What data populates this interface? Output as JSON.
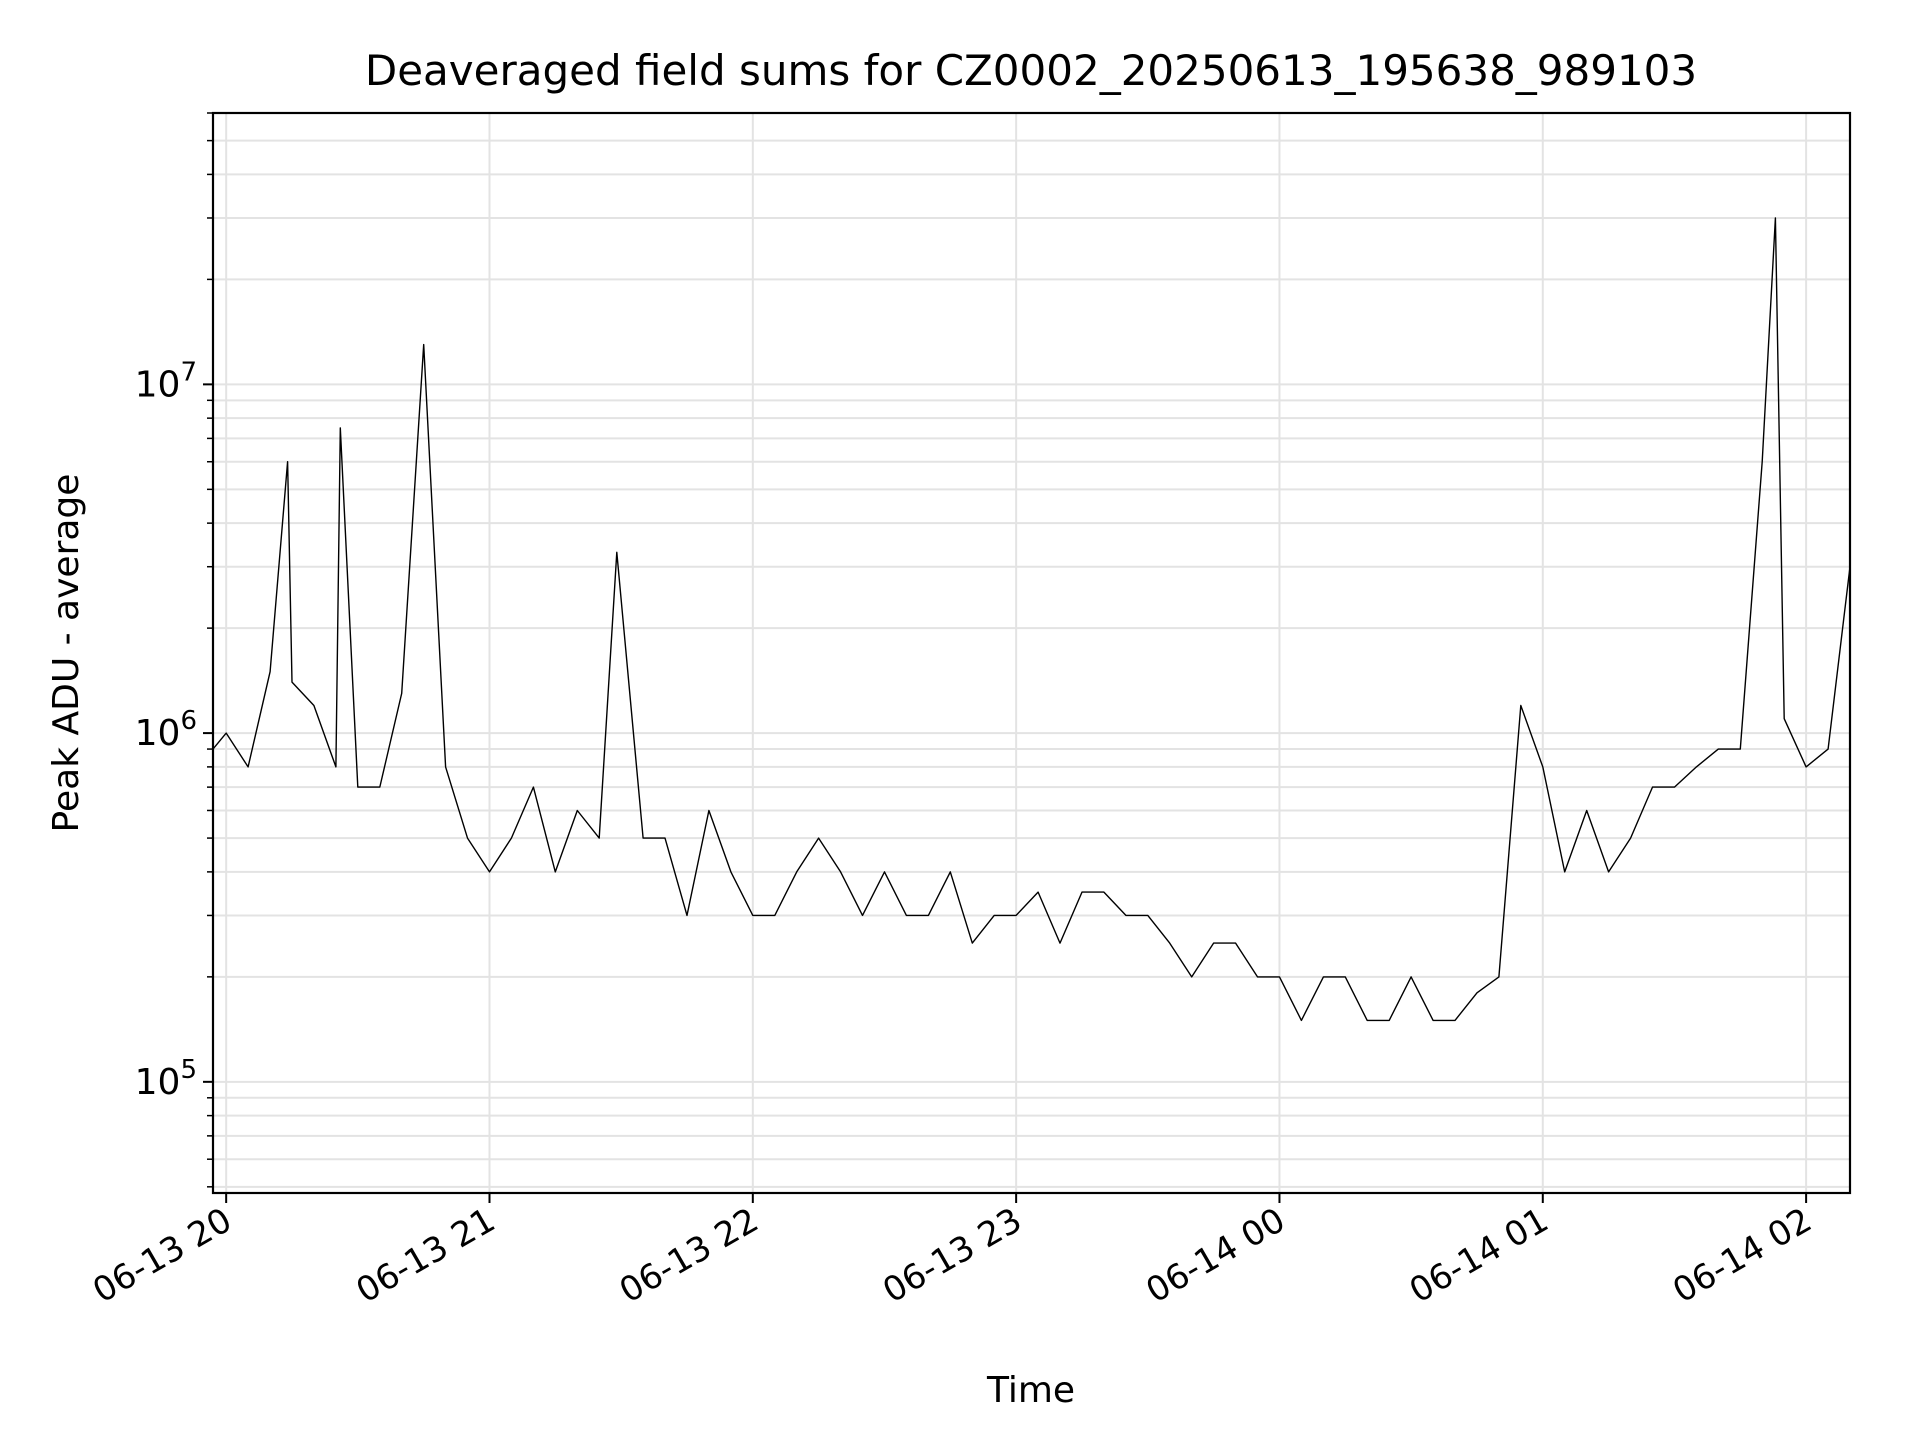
{
  "chart_data": {
    "type": "line",
    "title": "Deaveraged field sums for CZ0002_20250613_195638_989103",
    "xlabel": "Time",
    "ylabel": "Peak ADU - average",
    "yscale": "log",
    "grid": true,
    "ylim": [
      48000,
      60000000
    ],
    "xlim": [
      "2025-06-13 19:57",
      "2025-06-14 02:10"
    ],
    "x_ticks": [
      "06-13 20",
      "06-13 21",
      "06-13 22",
      "06-13 23",
      "06-14 00",
      "06-14 01",
      "06-14 02"
    ],
    "y_ticks": [
      {
        "base": "10",
        "exp": "5",
        "value": 100000
      },
      {
        "base": "10",
        "exp": "6",
        "value": 1000000
      },
      {
        "base": "10",
        "exp": "7",
        "value": 10000000
      }
    ],
    "series": [
      {
        "line_color": "#000000",
        "x": [
          "2025-06-13 19:57",
          "2025-06-13 20:00",
          "2025-06-13 20:05",
          "2025-06-13 20:10",
          "2025-06-13 20:14",
          "2025-06-13 20:15",
          "2025-06-13 20:20",
          "2025-06-13 20:25",
          "2025-06-13 20:26",
          "2025-06-13 20:30",
          "2025-06-13 20:35",
          "2025-06-13 20:40",
          "2025-06-13 20:45",
          "2025-06-13 20:50",
          "2025-06-13 20:55",
          "2025-06-13 21:00",
          "2025-06-13 21:05",
          "2025-06-13 21:10",
          "2025-06-13 21:15",
          "2025-06-13 21:20",
          "2025-06-13 21:25",
          "2025-06-13 21:29",
          "2025-06-13 21:35",
          "2025-06-13 21:40",
          "2025-06-13 21:45",
          "2025-06-13 21:50",
          "2025-06-13 21:55",
          "2025-06-13 22:00",
          "2025-06-13 22:05",
          "2025-06-13 22:10",
          "2025-06-13 22:15",
          "2025-06-13 22:20",
          "2025-06-13 22:25",
          "2025-06-13 22:30",
          "2025-06-13 22:35",
          "2025-06-13 22:40",
          "2025-06-13 22:45",
          "2025-06-13 22:50",
          "2025-06-13 22:55",
          "2025-06-13 23:00",
          "2025-06-13 23:05",
          "2025-06-13 23:10",
          "2025-06-13 23:15",
          "2025-06-13 23:20",
          "2025-06-13 23:25",
          "2025-06-13 23:30",
          "2025-06-13 23:35",
          "2025-06-13 23:40",
          "2025-06-13 23:45",
          "2025-06-13 23:50",
          "2025-06-13 23:55",
          "2025-06-14 00:00",
          "2025-06-14 00:05",
          "2025-06-14 00:10",
          "2025-06-14 00:15",
          "2025-06-14 00:20",
          "2025-06-14 00:25",
          "2025-06-14 00:30",
          "2025-06-14 00:35",
          "2025-06-14 00:40",
          "2025-06-14 00:45",
          "2025-06-14 00:50",
          "2025-06-14 00:55",
          "2025-06-14 01:00",
          "2025-06-14 01:05",
          "2025-06-14 01:10",
          "2025-06-14 01:15",
          "2025-06-14 01:20",
          "2025-06-14 01:25",
          "2025-06-14 01:30",
          "2025-06-14 01:35",
          "2025-06-14 01:40",
          "2025-06-14 01:45",
          "2025-06-14 01:50",
          "2025-06-14 01:53",
          "2025-06-14 01:55",
          "2025-06-14 02:00",
          "2025-06-14 02:05",
          "2025-06-14 02:10"
        ],
        "y": [
          900000,
          1000000,
          800000,
          1500000,
          6000000,
          1400000,
          1200000,
          800000,
          7500000,
          700000,
          700000,
          1300000,
          13000000,
          800000,
          500000,
          400000,
          500000,
          700000,
          400000,
          600000,
          500000,
          3300000,
          500000,
          500000,
          300000,
          600000,
          400000,
          300000,
          300000,
          400000,
          500000,
          400000,
          300000,
          400000,
          300000,
          300000,
          400000,
          250000,
          300000,
          300000,
          350000,
          250000,
          350000,
          350000,
          300000,
          300000,
          250000,
          200000,
          250000,
          250000,
          200000,
          200000,
          150000,
          200000,
          200000,
          150000,
          150000,
          200000,
          150000,
          150000,
          180000,
          200000,
          1200000,
          800000,
          400000,
          600000,
          400000,
          500000,
          700000,
          700000,
          800000,
          900000,
          900000,
          6000000,
          30000000,
          1100000,
          800000,
          900000,
          3000000
        ]
      }
    ]
  }
}
